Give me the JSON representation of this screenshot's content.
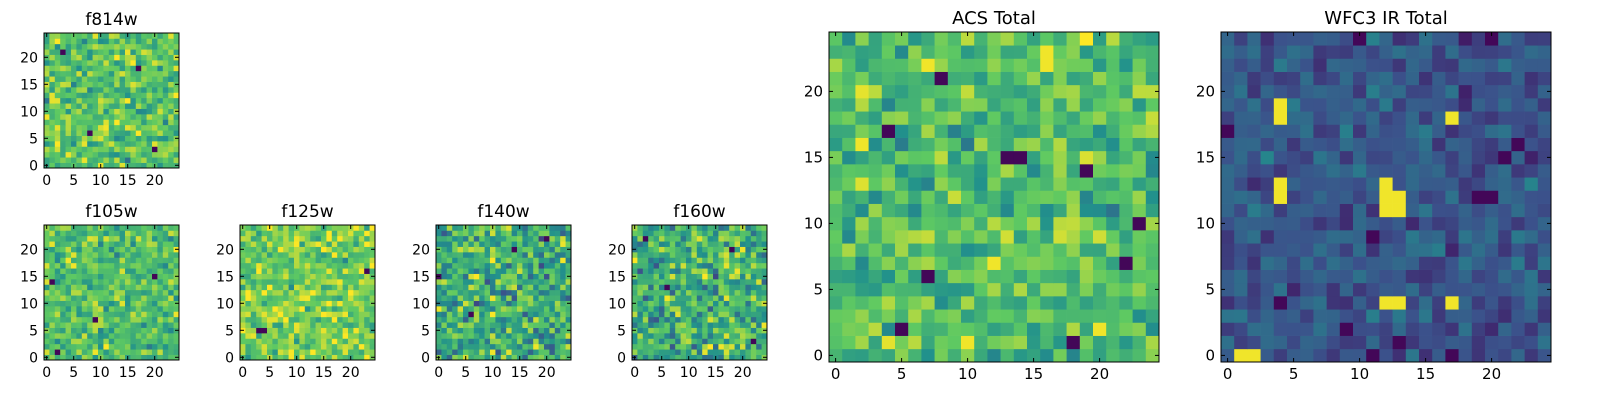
{
  "colors": {
    "colormap": "viridis",
    "viridis_stops": [
      "#440154",
      "#3b528b",
      "#21918c",
      "#5ec962",
      "#fde725"
    ],
    "axis": "#000000",
    "background": "#ffffff"
  },
  "chart_data": [
    {
      "id": "f814w",
      "type": "heatmap",
      "title": "f814w",
      "grid_size": 25,
      "xlim": [
        -0.5,
        24.5
      ],
      "ylim": [
        -0.5,
        24.5
      ],
      "xticks": [
        0,
        5,
        10,
        15,
        20
      ],
      "yticks": [
        0,
        5,
        10,
        15,
        20
      ],
      "tick_labels_x": [
        "0",
        "5",
        "10",
        "15",
        "20"
      ],
      "tick_labels_y": [
        "0",
        "5",
        "10",
        "15",
        "20"
      ],
      "value_range": [
        0,
        1
      ],
      "mean": 0.72,
      "spread": 0.18,
      "seed": 11,
      "hot_pixels": [],
      "cold_pixels": [
        [
          3,
          21
        ],
        [
          17,
          18
        ],
        [
          8,
          6
        ],
        [
          20,
          3
        ]
      ]
    },
    {
      "id": "f105w",
      "type": "heatmap",
      "title": "f105w",
      "grid_size": 25,
      "xlim": [
        -0.5,
        24.5
      ],
      "ylim": [
        -0.5,
        24.5
      ],
      "xticks": [
        0,
        5,
        10,
        15,
        20
      ],
      "yticks": [
        0,
        5,
        10,
        15,
        20
      ],
      "tick_labels_x": [
        "0",
        "5",
        "10",
        "15",
        "20"
      ],
      "tick_labels_y": [
        "0",
        "5",
        "10",
        "15",
        "20"
      ],
      "value_range": [
        0,
        1
      ],
      "mean": 0.7,
      "spread": 0.16,
      "seed": 23,
      "hot_pixels": [
        [
          4,
          18
        ],
        [
          5,
          17
        ],
        [
          9,
          1
        ]
      ],
      "cold_pixels": [
        [
          20,
          15
        ],
        [
          9,
          7
        ],
        [
          2,
          1
        ],
        [
          1,
          14
        ]
      ]
    },
    {
      "id": "f125w",
      "type": "heatmap",
      "title": "f125w",
      "grid_size": 25,
      "xlim": [
        -0.5,
        24.5
      ],
      "ylim": [
        -0.5,
        24.5
      ],
      "xticks": [
        0,
        5,
        10,
        15,
        20
      ],
      "yticks": [
        0,
        5,
        10,
        15,
        20
      ],
      "tick_labels_x": [
        "0",
        "5",
        "10",
        "15",
        "20"
      ],
      "tick_labels_y": [
        "0",
        "5",
        "10",
        "15",
        "20"
      ],
      "value_range": [
        0,
        1
      ],
      "mean": 0.78,
      "spread": 0.17,
      "seed": 37,
      "hot_pixels": [
        [
          18,
          10
        ],
        [
          19,
          8
        ]
      ],
      "cold_pixels": [
        [
          3,
          5
        ],
        [
          4,
          5
        ],
        [
          23,
          16
        ]
      ]
    },
    {
      "id": "f140w",
      "type": "heatmap",
      "title": "f140w",
      "grid_size": 25,
      "xlim": [
        -0.5,
        24.5
      ],
      "ylim": [
        -0.5,
        24.5
      ],
      "xticks": [
        0,
        5,
        10,
        15,
        20
      ],
      "yticks": [
        0,
        5,
        10,
        15,
        20
      ],
      "tick_labels_x": [
        "0",
        "5",
        "10",
        "15",
        "20"
      ],
      "tick_labels_y": [
        "0",
        "5",
        "10",
        "15",
        "20"
      ],
      "value_range": [
        0,
        1
      ],
      "mean": 0.62,
      "spread": 0.22,
      "seed": 41,
      "hot_pixels": [
        [
          10,
          1
        ],
        [
          18,
          2
        ]
      ],
      "cold_pixels": [
        [
          6,
          8
        ],
        [
          0,
          15
        ],
        [
          14,
          20
        ],
        [
          20,
          22
        ]
      ]
    },
    {
      "id": "f160w",
      "type": "heatmap",
      "title": "f160w",
      "grid_size": 25,
      "xlim": [
        -0.5,
        24.5
      ],
      "ylim": [
        -0.5,
        24.5
      ],
      "xticks": [
        0,
        5,
        10,
        15,
        20
      ],
      "yticks": [
        0,
        5,
        10,
        15,
        20
      ],
      "tick_labels_x": [
        "0",
        "5",
        "10",
        "15",
        "20"
      ],
      "tick_labels_y": [
        "0",
        "5",
        "10",
        "15",
        "20"
      ],
      "value_range": [
        0,
        1
      ],
      "mean": 0.64,
      "spread": 0.22,
      "seed": 53,
      "hot_pixels": [
        [
          24,
          6
        ],
        [
          16,
          2
        ]
      ],
      "cold_pixels": [
        [
          2,
          22
        ],
        [
          18,
          20
        ],
        [
          6,
          13
        ],
        [
          22,
          3
        ]
      ]
    },
    {
      "id": "acs_total",
      "type": "heatmap",
      "title": "ACS Total",
      "grid_size": 25,
      "xlim": [
        -0.5,
        24.5
      ],
      "ylim": [
        -0.5,
        24.5
      ],
      "xticks": [
        0,
        5,
        10,
        15,
        20
      ],
      "yticks": [
        0,
        5,
        10,
        15,
        20
      ],
      "tick_labels_x": [
        "0",
        "5",
        "10",
        "15",
        "20"
      ],
      "tick_labels_y": [
        "0",
        "5",
        "10",
        "15",
        "20"
      ],
      "value_range": [
        0,
        1
      ],
      "mean": 0.7,
      "spread": 0.16,
      "seed": 67,
      "hot_pixels": [
        [
          16,
          22
        ],
        [
          16,
          23
        ],
        [
          10,
          1
        ],
        [
          20,
          2
        ],
        [
          12,
          7
        ],
        [
          7,
          22
        ],
        [
          2,
          16
        ]
      ],
      "cold_pixels": [
        [
          8,
          21
        ],
        [
          13,
          15
        ],
        [
          14,
          15
        ],
        [
          4,
          17
        ],
        [
          7,
          6
        ],
        [
          19,
          14
        ],
        [
          23,
          10
        ],
        [
          22,
          7
        ],
        [
          5,
          2
        ],
        [
          18,
          1
        ]
      ]
    },
    {
      "id": "wfc3_ir_total",
      "type": "heatmap",
      "title": "WFC3 IR Total",
      "grid_size": 25,
      "xlim": [
        -0.5,
        24.5
      ],
      "ylim": [
        -0.5,
        24.5
      ],
      "xticks": [
        0,
        5,
        10,
        15,
        20
      ],
      "yticks": [
        0,
        5,
        10,
        15,
        20
      ],
      "tick_labels_x": [
        "0",
        "5",
        "10",
        "15",
        "20"
      ],
      "tick_labels_y": [
        "0",
        "5",
        "10",
        "15",
        "20"
      ],
      "value_range": [
        0,
        1
      ],
      "mean": 0.27,
      "spread": 0.1,
      "seed": 79,
      "hot_pixels": [
        [
          4,
          19
        ],
        [
          4,
          18
        ],
        [
          17,
          18
        ],
        [
          4,
          13
        ],
        [
          4,
          12
        ],
        [
          12,
          13
        ],
        [
          12,
          12
        ],
        [
          13,
          12
        ],
        [
          12,
          11
        ],
        [
          13,
          11
        ],
        [
          12,
          4
        ],
        [
          13,
          4
        ],
        [
          17,
          4
        ],
        [
          2,
          0
        ],
        [
          1,
          0
        ]
      ],
      "cold_pixels": [
        [
          0,
          17
        ],
        [
          11,
          9
        ],
        [
          4,
          4
        ],
        [
          9,
          2
        ],
        [
          22,
          16
        ],
        [
          21,
          15
        ],
        [
          20,
          12
        ],
        [
          19,
          12
        ],
        [
          10,
          24
        ],
        [
          20,
          24
        ],
        [
          13,
          1
        ],
        [
          11,
          0
        ],
        [
          17,
          0
        ]
      ]
    }
  ]
}
